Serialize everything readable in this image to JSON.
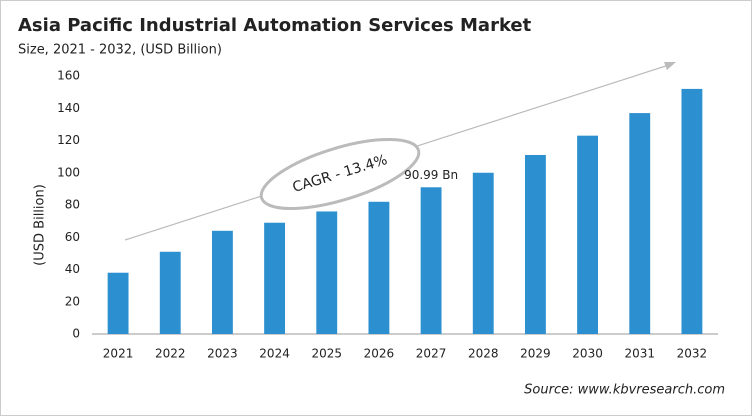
{
  "chart_data": {
    "type": "bar",
    "title": "Asia Pacific Industrial Automation Services Market",
    "subtitle": "Size, 2021 - 2032, (USD Billion)",
    "y_label": "(USD Billion)",
    "annotation": "CAGR - 13.4%",
    "source": "Source: www.kbvresearch.com",
    "categories": [
      "2021",
      "2022",
      "2023",
      "2024",
      "2025",
      "2026",
      "2027",
      "2028",
      "2029",
      "2030",
      "2031",
      "2032"
    ],
    "values": [
      38,
      51,
      64,
      69,
      76,
      82,
      90.99,
      100,
      111,
      123,
      137,
      152
    ],
    "value_labels": [
      null,
      null,
      null,
      null,
      null,
      null,
      "90.99 Bn",
      null,
      null,
      null,
      null,
      null
    ],
    "color": "#2b8fd0",
    "ylim": [
      0,
      160
    ],
    "yticks": [
      0,
      20,
      40,
      60,
      80,
      100,
      120,
      140,
      160
    ],
    "grid": false
  }
}
